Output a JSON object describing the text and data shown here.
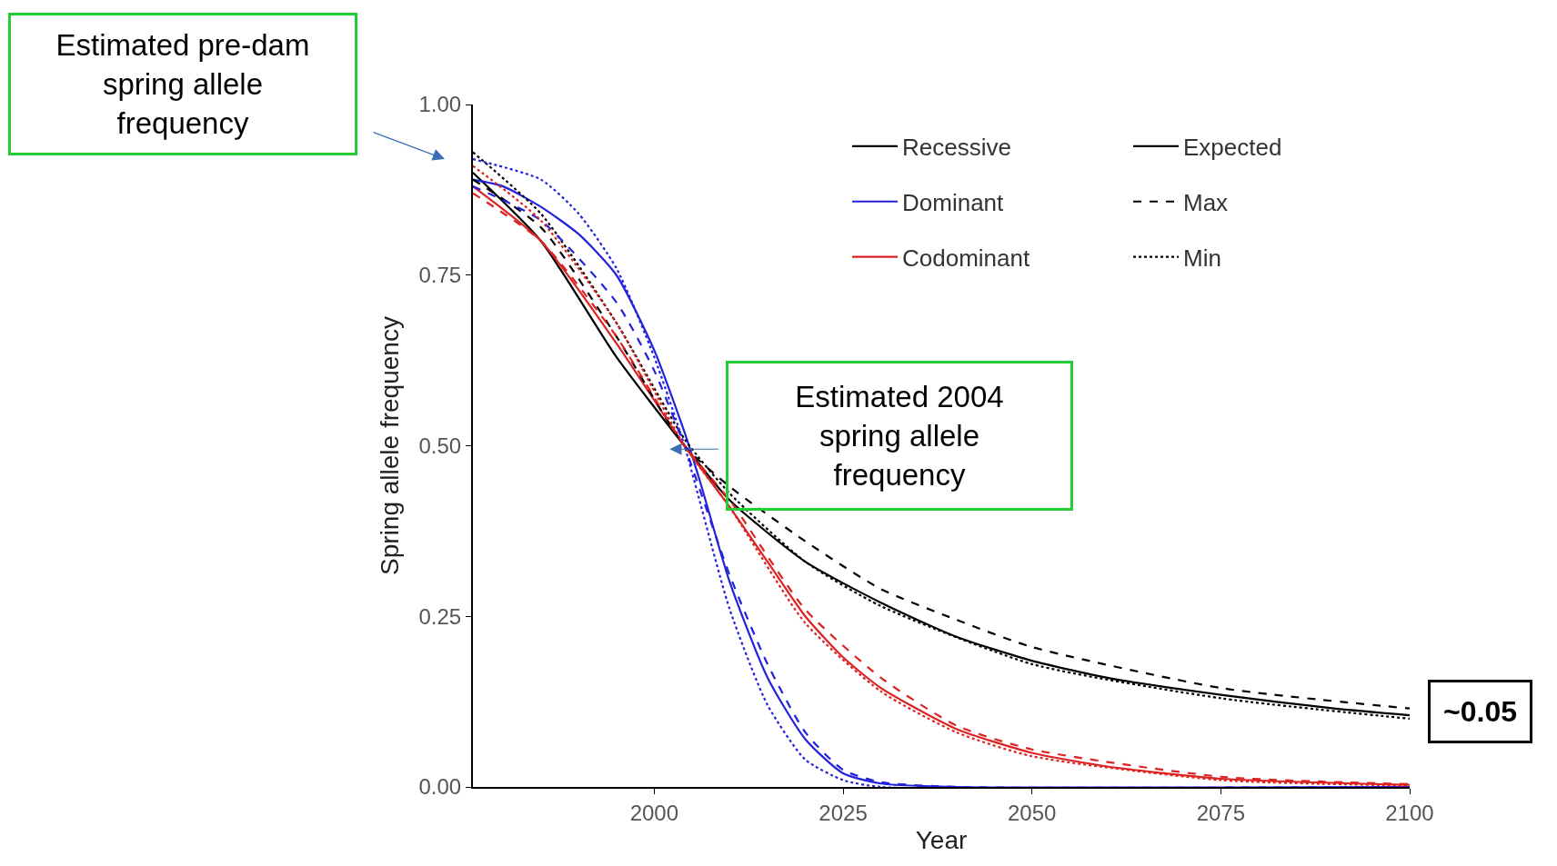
{
  "chart_data": {
    "type": "line",
    "xlabel": "Year",
    "ylabel": "Spring allele frequency",
    "xlim": [
      1976,
      2100
    ],
    "xticks": [
      2000,
      2025,
      2050,
      2075,
      2100
    ],
    "ylim": [
      0,
      1
    ],
    "yticks": [
      {
        "value": 0,
        "label": "0.00"
      },
      {
        "value": 0.25,
        "label": "0.25"
      },
      {
        "value": 0.5,
        "label": "0.50"
      },
      {
        "value": 0.75,
        "label": "0.75"
      },
      {
        "value": 1,
        "label": "1.00"
      }
    ],
    "legend": "top right",
    "marker": "none",
    "series": [
      {
        "name": "Recessive",
        "color": "#000000",
        "line_style": "solid",
        "x": [
          1976,
          1985,
          1995,
          2004,
          2010,
          2020,
          2030,
          2040,
          2050,
          2060,
          2075,
          2090,
          2100
        ],
        "values": [
          0.9,
          0.8,
          0.63,
          0.5,
          0.42,
          0.33,
          0.27,
          0.22,
          0.185,
          0.16,
          0.135,
          0.115,
          0.105
        ]
      },
      {
        "name": "Dominant",
        "color": "#2222dd",
        "line_style": "solid",
        "x": [
          1976,
          1980,
          1985,
          1990,
          1995,
          2000,
          2004,
          2006,
          2010,
          2015,
          2020,
          2025,
          2030,
          2040,
          2100
        ],
        "values": [
          0.89,
          0.88,
          0.85,
          0.81,
          0.75,
          0.64,
          0.52,
          0.45,
          0.3,
          0.16,
          0.07,
          0.02,
          0.005,
          0,
          0
        ]
      },
      {
        "name": "Codominant",
        "color": "#dd2222",
        "line_style": "solid",
        "x": [
          1976,
          1985,
          1995,
          2004,
          2010,
          2015,
          2020,
          2025,
          2030,
          2040,
          2050,
          2060,
          2075,
          2100
        ],
        "values": [
          0.88,
          0.8,
          0.65,
          0.5,
          0.41,
          0.33,
          0.25,
          0.19,
          0.145,
          0.085,
          0.05,
          0.03,
          0.012,
          0.003
        ]
      },
      {
        "name": "Expected",
        "color": "#000000",
        "line_style": "solid",
        "values": [
          null
        ]
      },
      {
        "name": "Max",
        "color": "#000000",
        "line_style": "dashed",
        "x": [
          1976,
          1985,
          1995,
          2004,
          2010,
          2020,
          2030,
          2040,
          2050,
          2075,
          2100
        ],
        "values": [
          0.89,
          0.82,
          0.66,
          0.5,
          0.44,
          0.36,
          0.29,
          0.245,
          0.205,
          0.145,
          0.115
        ]
      },
      {
        "name": "Min",
        "color": "#000000",
        "line_style": "dotted",
        "x": [
          1976,
          1985,
          1995,
          2004,
          2010,
          2020,
          2030,
          2050,
          2075,
          2100
        ],
        "values": [
          0.93,
          0.84,
          0.68,
          0.51,
          0.43,
          0.33,
          0.265,
          0.18,
          0.13,
          0.1
        ]
      },
      {
        "color": "#2222dd",
        "line_style": "dashed",
        "x": [
          1976,
          1985,
          1995,
          2000,
          2004,
          2010,
          2015,
          2020,
          2025,
          2030,
          2040,
          2100
        ],
        "values": [
          0.88,
          0.83,
          0.71,
          0.61,
          0.5,
          0.31,
          0.18,
          0.08,
          0.025,
          0.007,
          0,
          0
        ]
      },
      {
        "color": "#2222dd",
        "line_style": "dotted",
        "x": [
          1976,
          1985,
          1990,
          1995,
          2000,
          2004,
          2010,
          2015,
          2020,
          2025,
          2030,
          2100
        ],
        "values": [
          0.92,
          0.89,
          0.84,
          0.76,
          0.63,
          0.5,
          0.26,
          0.12,
          0.04,
          0.01,
          0,
          0
        ]
      },
      {
        "color": "#dd2222",
        "line_style": "dashed",
        "x": [
          1976,
          1985,
          1995,
          2004,
          2010,
          2020,
          2030,
          2040,
          2050,
          2075,
          2100
        ],
        "values": [
          0.87,
          0.8,
          0.66,
          0.5,
          0.42,
          0.26,
          0.16,
          0.09,
          0.055,
          0.015,
          0.004
        ]
      },
      {
        "color": "#dd2222",
        "line_style": "dotted",
        "x": [
          1976,
          1985,
          1995,
          2004,
          2010,
          2020,
          2030,
          2040,
          2050,
          2075,
          2100
        ],
        "values": [
          0.91,
          0.83,
          0.68,
          0.5,
          0.41,
          0.24,
          0.14,
          0.08,
          0.045,
          0.01,
          0.002
        ]
      }
    ],
    "annotations": [
      "Estimated pre-dam\nspring allele\nfrequency",
      "Estimated 2004\nspring allele\nfrequency",
      {
        "text": "~0.05",
        "x": 2100,
        "y": 0.11
      }
    ]
  }
}
